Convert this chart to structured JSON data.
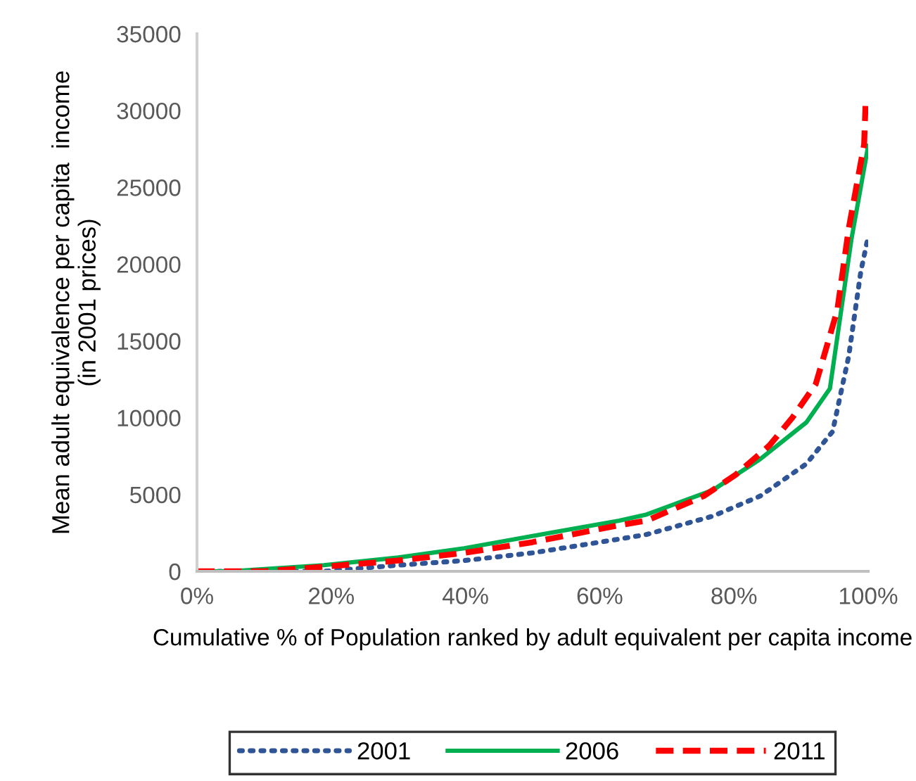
{
  "chart_data": {
    "type": "line",
    "xlabel": "Cumulative % of Population ranked by adult equivalent per capita income",
    "ylabel": "Mean adult equivalence per capita  income\n(in 2001 prices)",
    "xlim": [
      0,
      100
    ],
    "xticks": [
      {
        "value": 0,
        "label": "0%"
      },
      {
        "value": 20,
        "label": "20%"
      },
      {
        "value": 40,
        "label": "40%"
      },
      {
        "value": 60,
        "label": "60%"
      },
      {
        "value": 80,
        "label": "80%"
      },
      {
        "value": 100,
        "label": "100%"
      }
    ],
    "ylim": [
      0,
      35000
    ],
    "yticks": [
      0,
      5000,
      10000,
      15000,
      20000,
      25000,
      30000,
      35000
    ],
    "grid": false,
    "legend": "bottom",
    "series": [
      {
        "name": "2001",
        "color": "#2f5597",
        "line_style": "dotted",
        "x": [
          0,
          10,
          18.9,
          30,
          39.8,
          50,
          62.9,
          67,
          76.9,
          83.9,
          90.8,
          94.7,
          97.1,
          98.9,
          100
        ],
        "values": [
          0,
          0,
          0,
          400,
          700,
          1200,
          2100,
          2400,
          3600,
          4900,
          7000,
          9100,
          14000,
          19500,
          21800
        ]
      },
      {
        "name": "2006",
        "color": "#00b050",
        "line_style": "solid",
        "x": [
          0,
          4.8,
          18.9,
          30,
          39.8,
          50,
          62.9,
          67,
          76.9,
          83.9,
          90.8,
          94.3,
          97.5,
          100
        ],
        "values": [
          0,
          0,
          400,
          900,
          1500,
          2300,
          3300,
          3700,
          5300,
          7300,
          9700,
          11900,
          21600,
          27700
        ]
      },
      {
        "name": "2011",
        "color": "#ff0000",
        "line_style": "dashed",
        "x": [
          0,
          10,
          18.9,
          30,
          39.8,
          50,
          62.9,
          67,
          75.5,
          80.3,
          85.3,
          88.7,
          92.2,
          95.4,
          97.1,
          99.4,
          99.6
        ],
        "values": [
          0,
          0,
          300,
          700,
          1200,
          1900,
          3000,
          3300,
          4900,
          6300,
          8200,
          10000,
          12200,
          17000,
          22300,
          27800,
          30300
        ]
      }
    ]
  }
}
